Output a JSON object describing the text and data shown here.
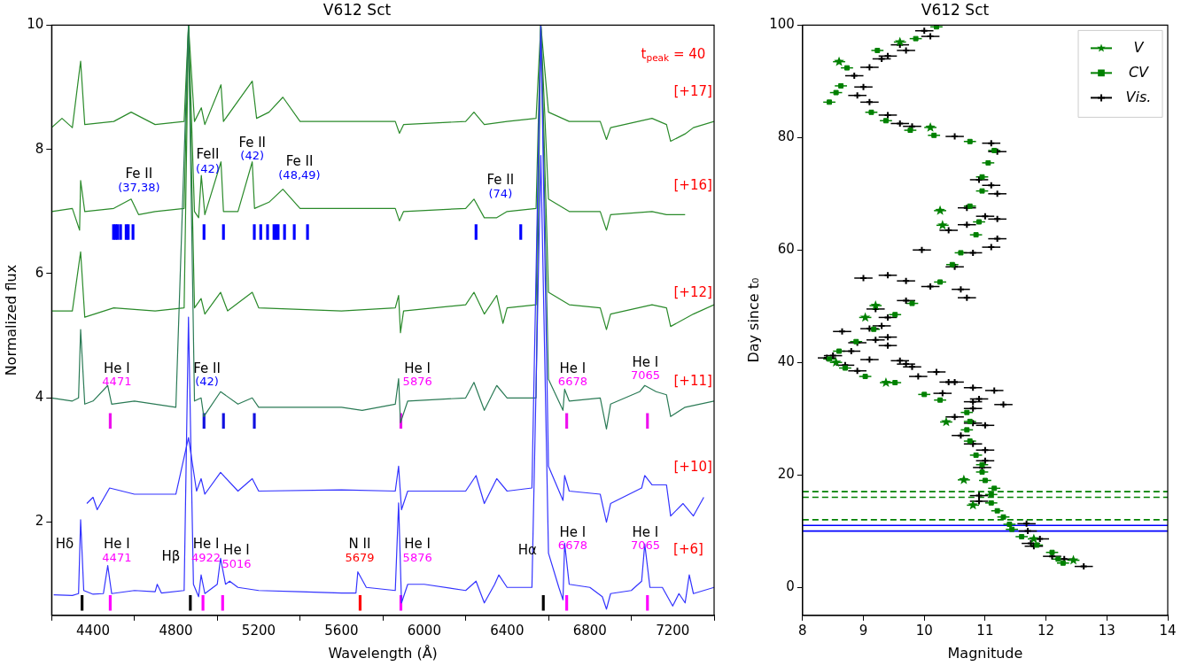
{
  "chart_data": [
    {
      "type": "line",
      "title": "V612 Sct",
      "xlabel": "Wavelength (Å)",
      "ylabel": "Normalized flux",
      "xlim": [
        4200,
        7400
      ],
      "xticks": [
        4400,
        4800,
        5200,
        5600,
        6000,
        6400,
        6800,
        7200
      ],
      "ylim": [
        0.5,
        10
      ],
      "yticks": [
        2,
        4,
        6,
        8,
        10
      ],
      "marker": "none",
      "line_style": "solid",
      "series": [
        {
          "type": "line",
          "color": "#3333ff",
          "x": [
            4210,
            4300,
            4330,
            4340,
            4355,
            4400,
            4450,
            4471,
            4490,
            4600,
            4700,
            4710,
            4730,
            4840,
            4861,
            4885,
            4910,
            4922,
            4940,
            5000,
            5016,
            5040,
            5060,
            5100,
            5200,
            5400,
            5600,
            5670,
            5679,
            5720,
            5860,
            5876,
            5890,
            5920,
            6000,
            6200,
            6250,
            6290,
            6340,
            6360,
            6400,
            6520,
            6563,
            6600,
            6650,
            6670,
            6678,
            6700,
            6800,
            6860,
            6880,
            6900,
            7000,
            7050,
            7065,
            7090,
            7150,
            7200,
            7230,
            7260,
            7280,
            7300,
            7400
          ],
          "values": [
            0.83,
            0.82,
            0.85,
            2.04,
            0.9,
            0.84,
            0.85,
            1.3,
            0.85,
            0.9,
            0.88,
            1.0,
            0.86,
            0.9,
            5.3,
            1.0,
            0.8,
            1.15,
            0.85,
            1.0,
            1.42,
            1.0,
            1.05,
            0.95,
            0.9,
            0.88,
            0.86,
            0.86,
            1.2,
            0.95,
            0.9,
            2.31,
            0.7,
            1.0,
            1.0,
            0.9,
            1.05,
            0.7,
            1.0,
            1.15,
            0.95,
            0.95,
            7.9,
            1.5,
            0.95,
            0.75,
            1.66,
            1.0,
            0.95,
            0.8,
            0.6,
            0.85,
            0.9,
            1.05,
            1.65,
            0.95,
            0.95,
            0.65,
            0.85,
            0.7,
            1.15,
            0.85,
            0.95
          ]
        },
        {
          "type": "line",
          "color": "#3333ff",
          "x": [
            4370,
            4400,
            4420,
            4480,
            4600,
            4800,
            4861,
            4900,
            4922,
            4940,
            5016,
            5100,
            5169,
            5200,
            5600,
            5860,
            5876,
            5890,
            5920,
            6200,
            6250,
            6290,
            6350,
            6400,
            6520,
            6563,
            6600,
            6670,
            6678,
            6700,
            6850,
            6880,
            6900,
            7050,
            7065,
            7100,
            7170,
            7190,
            7250,
            7300,
            7350
          ],
          "values": [
            2.3,
            2.4,
            2.2,
            2.55,
            2.45,
            2.45,
            3.36,
            2.5,
            2.7,
            2.45,
            2.8,
            2.5,
            2.7,
            2.5,
            2.52,
            2.5,
            2.9,
            2.2,
            2.5,
            2.5,
            2.75,
            2.3,
            2.7,
            2.5,
            2.55,
            10,
            2.9,
            2.35,
            2.75,
            2.5,
            2.45,
            2.0,
            2.3,
            2.55,
            2.75,
            2.6,
            2.6,
            2.1,
            2.3,
            2.1,
            2.4
          ]
        },
        {
          "type": "line",
          "color": "#2a7a55",
          "x": [
            4200,
            4300,
            4330,
            4340,
            4360,
            4400,
            4471,
            4490,
            4600,
            4800,
            4861,
            4890,
            4922,
            4935,
            5016,
            5100,
            5169,
            5200,
            5600,
            5700,
            5860,
            5876,
            5885,
            5920,
            6200,
            6240,
            6290,
            6350,
            6400,
            6540,
            6563,
            6600,
            6670,
            6678,
            6700,
            6850,
            6880,
            6900,
            7040,
            7065,
            7120,
            7170,
            7190,
            7260,
            7400
          ],
          "values": [
            4.0,
            3.95,
            4.0,
            5.1,
            3.9,
            3.95,
            4.2,
            3.9,
            3.95,
            3.85,
            10,
            3.95,
            4.0,
            3.7,
            4.1,
            3.9,
            4.0,
            3.85,
            3.85,
            3.8,
            3.9,
            4.31,
            3.6,
            3.95,
            4.0,
            4.25,
            3.8,
            4.2,
            4.0,
            4.0,
            10,
            4.3,
            3.8,
            4.14,
            3.95,
            4.0,
            3.5,
            3.9,
            4.1,
            4.2,
            4.1,
            4.05,
            3.7,
            3.85,
            3.95
          ]
        },
        {
          "type": "line",
          "color": "#2a8a2a",
          "x": [
            4200,
            4300,
            4340,
            4360,
            4500,
            4700,
            4840,
            4861,
            4890,
            4922,
            4940,
            5016,
            5050,
            5169,
            5200,
            5600,
            5860,
            5876,
            5885,
            5900,
            6200,
            6240,
            6290,
            6350,
            6380,
            6400,
            6540,
            6563,
            6600,
            6700,
            6850,
            6880,
            6900,
            7100,
            7170,
            7190,
            7300,
            7400
          ],
          "values": [
            5.4,
            5.4,
            6.35,
            5.3,
            5.45,
            5.4,
            5.45,
            10,
            5.45,
            5.6,
            5.35,
            5.7,
            5.4,
            5.7,
            5.45,
            5.4,
            5.45,
            5.65,
            5.05,
            5.4,
            5.5,
            5.7,
            5.35,
            5.65,
            5.2,
            5.45,
            5.5,
            10,
            5.7,
            5.5,
            5.45,
            5.1,
            5.35,
            5.5,
            5.45,
            5.15,
            5.35,
            5.5
          ]
        },
        {
          "type": "line",
          "color": "#2a8a2a",
          "x": [
            4200,
            4300,
            4335,
            4340,
            4360,
            4500,
            4584,
            4620,
            4700,
            4840,
            4861,
            4890,
            4910,
            4923,
            4940,
            5018,
            5030,
            5100,
            5169,
            5180,
            5250,
            5317,
            5400,
            5600,
            5860,
            5880,
            5900,
            6200,
            6240,
            6290,
            6350,
            6400,
            6540,
            6563,
            6600,
            6700,
            6850,
            6880,
            6900,
            7100,
            7170,
            7260
          ],
          "values": [
            7.0,
            7.05,
            6.7,
            7.5,
            7.0,
            7.05,
            7.2,
            6.95,
            7.0,
            7.05,
            10,
            7.0,
            6.9,
            7.58,
            6.95,
            7.8,
            7.0,
            7.0,
            7.8,
            7.05,
            7.15,
            7.36,
            7.05,
            7.05,
            7.05,
            6.85,
            7.0,
            7.05,
            7.2,
            6.9,
            6.9,
            7.0,
            7.05,
            10,
            7.2,
            7.0,
            7.0,
            6.7,
            6.95,
            7.0,
            6.95,
            6.95
          ]
        },
        {
          "type": "line",
          "color": "#2a8a2a",
          "x": [
            4200,
            4250,
            4300,
            4340,
            4360,
            4500,
            4584,
            4700,
            4840,
            4861,
            4890,
            4923,
            4940,
            5018,
            5030,
            5169,
            5190,
            5250,
            5317,
            5400,
            5600,
            5860,
            5880,
            5900,
            6200,
            6240,
            6290,
            6400,
            6540,
            6563,
            6600,
            6700,
            6850,
            6880,
            6900,
            7100,
            7170,
            7190,
            7260,
            7300,
            7400
          ],
          "values": [
            8.35,
            8.5,
            8.35,
            9.42,
            8.4,
            8.45,
            8.6,
            8.4,
            8.45,
            10,
            8.45,
            8.67,
            8.4,
            9.04,
            8.45,
            9.1,
            8.5,
            8.6,
            8.84,
            8.45,
            8.45,
            8.45,
            8.26,
            8.4,
            8.45,
            8.6,
            8.4,
            8.45,
            8.5,
            10,
            8.6,
            8.45,
            8.45,
            8.16,
            8.35,
            8.5,
            8.4,
            8.13,
            8.25,
            8.35,
            8.45
          ]
        },
        {
          "type": "bar",
          "color": "#0000ff",
          "x": [
            4499,
            4509,
            4519,
            4533,
            4560,
            4570,
            4593,
            4936,
            5030,
            5179,
            5210,
            5243,
            5274,
            5284,
            5294,
            5325,
            5372,
            5436,
            6250,
            6466
          ],
          "base": [
            6.55,
            6.55,
            6.55,
            6.55,
            6.55,
            6.55,
            6.55,
            6.55,
            6.55,
            6.55,
            6.55,
            6.55,
            6.55,
            6.55,
            6.55,
            6.55,
            6.55,
            6.55,
            6.55,
            6.55
          ],
          "values": [
            0.24,
            0.24,
            0.24,
            0.24,
            0.24,
            0.24,
            0.24,
            0.24,
            0.24,
            0.24,
            0.24,
            0.24,
            0.24,
            0.24,
            0.24,
            0.24,
            0.24,
            0.24,
            0.24,
            0.24
          ]
        },
        {
          "type": "bar",
          "color": "#1010e0",
          "x": [
            4936,
            5030,
            5179
          ],
          "base": [
            3.51,
            3.51,
            3.51
          ],
          "values": [
            0.24,
            0.24,
            0.24
          ]
        },
        {
          "type": "bar",
          "color": "#ee10ee",
          "x": [
            4483,
            5887,
            6688,
            7078
          ],
          "base": [
            3.51,
            3.51,
            3.51,
            3.51
          ],
          "values": [
            0.24,
            0.24,
            0.24,
            0.24
          ]
        },
        {
          "type": "bar",
          "color": "#ff00ff",
          "x": [
            4483,
            4931,
            5026,
            5887,
            6688,
            7078
          ],
          "base": [
            0.58,
            0.58,
            0.58,
            0.58,
            0.58,
            0.58
          ],
          "values": [
            0.24,
            0.24,
            0.24,
            0.24,
            0.24,
            0.24
          ]
        },
        {
          "type": "bar",
          "color": "#000000",
          "x": [
            4347,
            4870,
            6575
          ],
          "base": [
            0.58,
            0.58,
            0.58
          ],
          "values": [
            0.24,
            0.24,
            0.24
          ]
        },
        {
          "type": "bar",
          "color": "#ff0000",
          "x": [
            5690
          ],
          "base": [
            0.58
          ],
          "values": [
            0.24
          ]
        }
      ],
      "annotations": [
        "t$_{peak}$ = 40",
        "[+17]",
        "[+16]",
        "[+12]",
        "[+11]",
        "[+10]",
        "[+6]",
        "Fe II",
        "(37,38)",
        "FeII",
        "(42)",
        "Fe II",
        "(42)",
        "Fe II",
        "(48,49)",
        "Fe II",
        "(74)",
        "He I",
        "4471",
        "Fe II",
        "(42)",
        "He I",
        "5876",
        "He I",
        "6678",
        "He I",
        "7065",
        "Hδ",
        "He I",
        "4471",
        "Hβ",
        "He I",
        "4922",
        "He I",
        "5016",
        "N II",
        "5679",
        "He I",
        "5876",
        "Hα",
        "He I",
        "6678",
        "He I",
        "7065"
      ]
    },
    {
      "type": "scatter",
      "title": "V612 Sct",
      "xlabel": "Magnitude",
      "ylabel": "Day since t₀",
      "xlim": [
        8,
        14
      ],
      "xticks": [
        8,
        9,
        10,
        11,
        12,
        13,
        14
      ],
      "ylim": [
        -5,
        100
      ],
      "yticks": [
        0,
        20,
        40,
        60,
        80,
        100
      ],
      "legend": "top right",
      "series": [
        {
          "name": "V",
          "marker": "star",
          "color": "#008000",
          "x": [
            12.45,
            11.8,
            10.8,
            10.65,
            10.36,
            9.37,
            8.55,
            9.03,
            9.2,
            10.3,
            10.26,
            10.1,
            8.6,
            9.6
          ],
          "values": [
            4.8,
            8.6,
            14.6,
            19.1,
            29.4,
            36.4,
            40.0,
            48.0,
            50.1,
            64.4,
            67.0,
            81.8,
            93.5,
            97.0
          ],
          "xerrors": [
            0.1,
            0.1,
            0.1,
            0.1,
            0.1,
            0.1,
            0.1,
            0.1,
            0.1,
            0.1,
            0.1,
            0.1,
            0.1,
            0.1
          ]
        },
        {
          "name": "CV",
          "marker": "square",
          "color": "#008000",
          "x": [
            12.28,
            12.2,
            12.1,
            11.85,
            11.6,
            11.44,
            11.4,
            11.3,
            11.2,
            11.1,
            11.1,
            11.15,
            11.0,
            10.95,
            10.95,
            10.85,
            10.75,
            10.7,
            10.75,
            10.7,
            10.26,
            10.0,
            9.52,
            9.03,
            8.7,
            8.44,
            8.6,
            8.88,
            9.17,
            9.52,
            9.8,
            10.26,
            10.46,
            10.6,
            10.85,
            10.9,
            10.75,
            10.95,
            10.95,
            11.05,
            11.15,
            10.75,
            10.16,
            9.77,
            9.37,
            9.13,
            8.44,
            8.55,
            8.63,
            8.73,
            9.23,
            9.86,
            10.2
          ],
          "values": [
            4.3,
            5.0,
            6.2,
            7.5,
            9.0,
            10.3,
            11.2,
            12.5,
            13.6,
            15.0,
            16.5,
            17.6,
            19.0,
            20.5,
            21.8,
            23.5,
            26.0,
            28.0,
            29.5,
            31.1,
            33.3,
            34.3,
            36.4,
            37.5,
            39.0,
            40.6,
            42.0,
            43.7,
            45.9,
            48.5,
            50.5,
            54.3,
            57.4,
            59.5,
            62.7,
            65.0,
            67.8,
            70.5,
            73.0,
            75.5,
            77.7,
            79.3,
            80.4,
            81.3,
            83.0,
            84.5,
            86.3,
            88.0,
            89.2,
            92.4,
            95.5,
            97.6,
            99.7
          ],
          "xerrors": [
            0.1,
            0.1,
            0.1,
            0.1,
            0.1,
            0.1,
            0.1,
            0.1,
            0.1,
            0.1,
            0.1,
            0.1,
            0.1,
            0.1,
            0.1,
            0.1,
            0.1,
            0.1,
            0.1,
            0.1,
            0.1,
            0.1,
            0.1,
            0.1,
            0.1,
            0.1,
            0.1,
            0.1,
            0.1,
            0.1,
            0.1,
            0.1,
            0.1,
            0.1,
            0.1,
            0.1,
            0.1,
            0.1,
            0.1,
            0.1,
            0.1,
            0.1,
            0.1,
            0.1,
            0.1,
            0.1,
            0.1,
            0.1,
            0.1,
            0.1,
            0.1,
            0.1,
            0.1
          ]
        },
        {
          "name": "Vis.",
          "marker": "cross",
          "color": "#000000",
          "x": [
            12.62,
            12.3,
            12.1,
            11.8,
            11.75,
            11.9,
            11.7,
            11.68,
            10.9,
            10.9,
            10.95,
            11.0,
            11.0,
            10.8,
            10.6,
            11.0,
            10.8,
            10.5,
            10.8,
            11.3,
            10.8,
            10.9,
            11.15,
            10.8,
            10.3,
            10.5,
            10.4,
            9.9,
            10.2,
            9.8,
            9.7,
            9.6,
            9.1,
            8.7,
            8.9,
            8.5,
            8.4,
            8.8,
            9.4,
            8.9,
            9.2,
            9.4,
            8.65,
            9.1,
            9.3,
            9.4,
            9.2,
            9.7,
            10.1,
            10.6,
            10.7,
            9.4,
            9.0,
            9.7,
            9.96,
            10.5,
            10.8,
            11.1,
            11.2,
            10.4,
            10.7,
            11.2,
            11.0,
            10.7,
            11.2,
            11.1,
            10.9,
            11.2,
            11.1,
            10.5,
            9.8,
            9.6,
            9.4,
            9.1,
            8.9,
            9.0,
            8.85,
            9.1,
            9.3,
            9.4,
            9.7,
            9.6,
            10.1,
            10.0
          ],
          "values": [
            3.7,
            5.0,
            5.5,
            7.3,
            7.8,
            8.6,
            10.0,
            11.3,
            15.3,
            16.3,
            21.3,
            22.5,
            24.4,
            25.5,
            27.0,
            28.8,
            29.2,
            30.3,
            31.8,
            32.5,
            33.0,
            33.5,
            35.0,
            35.5,
            34.5,
            36.5,
            36.5,
            37.5,
            38.3,
            39.2,
            39.7,
            40.3,
            40.5,
            39.5,
            38.5,
            41.2,
            40.8,
            42.0,
            43.0,
            43.5,
            44.0,
            44.5,
            45.5,
            46.0,
            46.5,
            48.0,
            49.5,
            51.0,
            53.5,
            53.0,
            51.5,
            55.5,
            55.0,
            54.5,
            60.0,
            57.0,
            59.5,
            60.5,
            62.0,
            63.5,
            64.5,
            65.5,
            66.0,
            67.5,
            70.0,
            71.5,
            72.5,
            77.5,
            79.0,
            80.2,
            82.0,
            82.5,
            84.0,
            86.3,
            87.5,
            89.0,
            91.0,
            92.5,
            94.0,
            94.5,
            95.5,
            96.5,
            98.0,
            99.0
          ],
          "xerrors": [
            0.15,
            0.15,
            0.15,
            0.15,
            0.15,
            0.15,
            0.15,
            0.15,
            0.15,
            0.15,
            0.15,
            0.15,
            0.15,
            0.15,
            0.15,
            0.15,
            0.15,
            0.15,
            0.15,
            0.15,
            0.15,
            0.15,
            0.15,
            0.15,
            0.15,
            0.15,
            0.15,
            0.15,
            0.15,
            0.15,
            0.15,
            0.15,
            0.15,
            0.15,
            0.15,
            0.15,
            0.15,
            0.15,
            0.15,
            0.15,
            0.15,
            0.15,
            0.15,
            0.15,
            0.15,
            0.15,
            0.15,
            0.15,
            0.15,
            0.15,
            0.15,
            0.15,
            0.15,
            0.15,
            0.15,
            0.15,
            0.15,
            0.15,
            0.15,
            0.15,
            0.15,
            0.15,
            0.15,
            0.15,
            0.15,
            0.15,
            0.15,
            0.15,
            0.15,
            0.15,
            0.15,
            0.15,
            0.15,
            0.15,
            0.15,
            0.15,
            0.15,
            0.15,
            0.15,
            0.15,
            0.15,
            0.15,
            0.15,
            0.15
          ]
        }
      ],
      "ref_lines": [
        {
          "axis": "y",
          "value": 17,
          "color": "#008000",
          "line_style": "dashed"
        },
        {
          "axis": "y",
          "value": 16,
          "color": "#008000",
          "line_style": "dashed"
        },
        {
          "axis": "y",
          "value": 12,
          "color": "#008000",
          "line_style": "dashed"
        },
        {
          "axis": "y",
          "value": 11,
          "color": "#0000ff",
          "line_style": "solid"
        },
        {
          "axis": "y",
          "value": 10,
          "color": "#0000ff",
          "line_style": "solid"
        }
      ]
    }
  ]
}
